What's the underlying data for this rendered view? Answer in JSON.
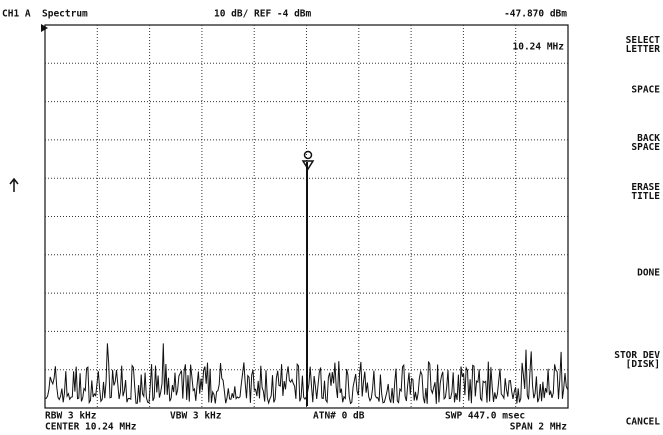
{
  "header": {
    "channel": "CH1 A",
    "mode": "Spectrum",
    "scale": "10 dB/ REF -4 dBm",
    "marker_level": "-47.870 dBm",
    "marker_freq": "10.24 MHz"
  },
  "softkeys": [
    [
      "SELECT",
      "LETTER"
    ],
    [
      "SPACE"
    ],
    [
      "BACK",
      "SPACE"
    ],
    [
      "ERASE",
      "TITLE"
    ],
    [
      "DONE"
    ],
    [
      "STOR DEV",
      "[DISK]"
    ],
    [
      "CANCEL"
    ]
  ],
  "footer": {
    "rbw": "RBW 3 kHz",
    "vbw": "VBW 3 kHz",
    "atten": "ATN# 0 dB",
    "sweep": "SWP 447.0 msec",
    "center": "CENTER 10.24 MHz",
    "span": "SPAN 2 MHz"
  }
}
